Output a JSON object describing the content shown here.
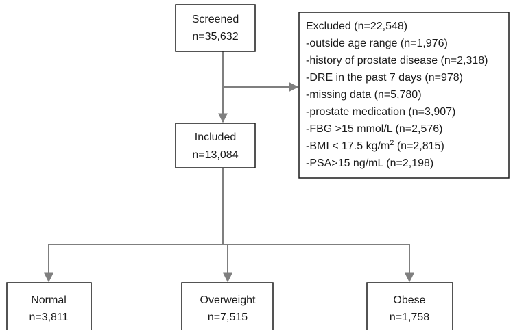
{
  "nodes": [
    {
      "label": "Screened",
      "count": "n=35,632"
    },
    {
      "label": "Included",
      "count": "n=13,084"
    },
    {
      "label": "Normal",
      "count": "n=3,811"
    },
    {
      "label": "Overweight",
      "count": "n=7,515"
    },
    {
      "label": "Obese",
      "count": "n=1,758"
    }
  ],
  "excluded": {
    "title": "Excluded (n=22,548)",
    "items": [
      "-outside age range (n=1,976)",
      "-history of prostate disease (n=2,318)",
      "-DRE in the past 7 days (n=978)",
      "-missing data (n=5,780)",
      "-prostate medication (n=3,907)",
      "-FBG >15 mmol/L (n=2,576)"
    ],
    "bmi": {
      "text": "-BMI < 17.5 kg/m",
      "superscript": "2",
      "count": " (n=2,815)"
    },
    "last": "-PSA>15 ng/mL (n=2,198)"
  }
}
